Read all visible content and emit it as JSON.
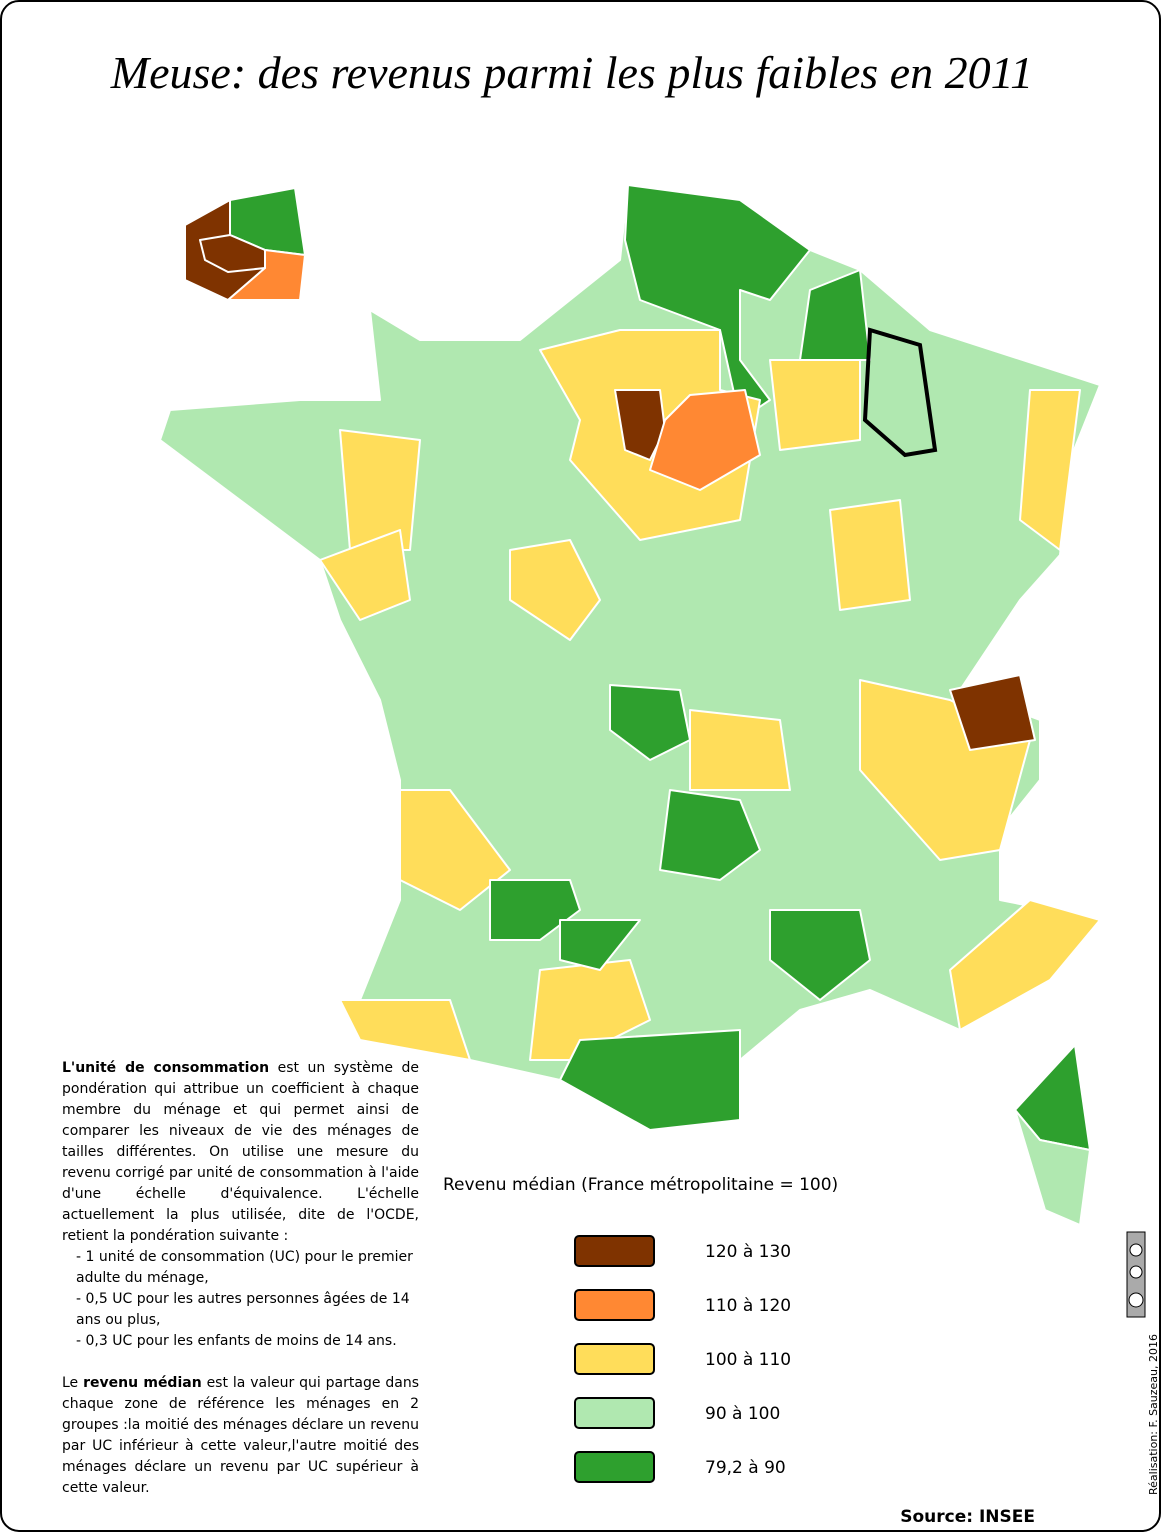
{
  "title": "Meuse: des revenus parmi les plus faibles en 2011",
  "notes": {
    "p1_bold": "L'unité de consommation",
    "p1_text": " est un système de pondération qui attribue un coefficient à chaque membre du ménage et qui permet ainsi de comparer les niveaux de vie des ménages de tailles différentes. On utilise une mesure du revenu corrigé par unité de consommation à l'aide d'une échelle d'équivalence. L'échelle actuellement la plus utilisée, dite de l'OCDE, retient la pondération suivante :",
    "bullets": [
      "- 1 unité de consommation (UC) pour le premier adulte du ménage,",
      "- 0,5 UC pour les autres personnes âgées de 14 ans ou plus,",
      "- 0,3 UC pour les enfants de moins de 14 ans."
    ],
    "p2_start": "Le ",
    "p2_bold": "revenu médian",
    "p2_text": " est la valeur qui partage dans chaque zone de référence les ménages en 2 groupes :la moitié des ménages déclare un revenu par UC inférieur à cette valeur,l'autre moitié des ménages déclare un revenu par UC supérieur à cette valeur."
  },
  "legend": {
    "title": "Revenu médian (France métropolitaine = 100)",
    "items": [
      {
        "label": "120 à 130",
        "color": "#7f3300"
      },
      {
        "label": "110 à 120",
        "color": "#ff8833"
      },
      {
        "label": "100 à 110",
        "color": "#ffdd5a"
      },
      {
        "label": "90 à 100",
        "color": "#b0e8b0"
      },
      {
        "label": "79,2 à 90",
        "color": "#2ea02e"
      }
    ]
  },
  "credit": "Réalisation: F. Sauzeau, 2016",
  "source": "Source: INSEE"
}
